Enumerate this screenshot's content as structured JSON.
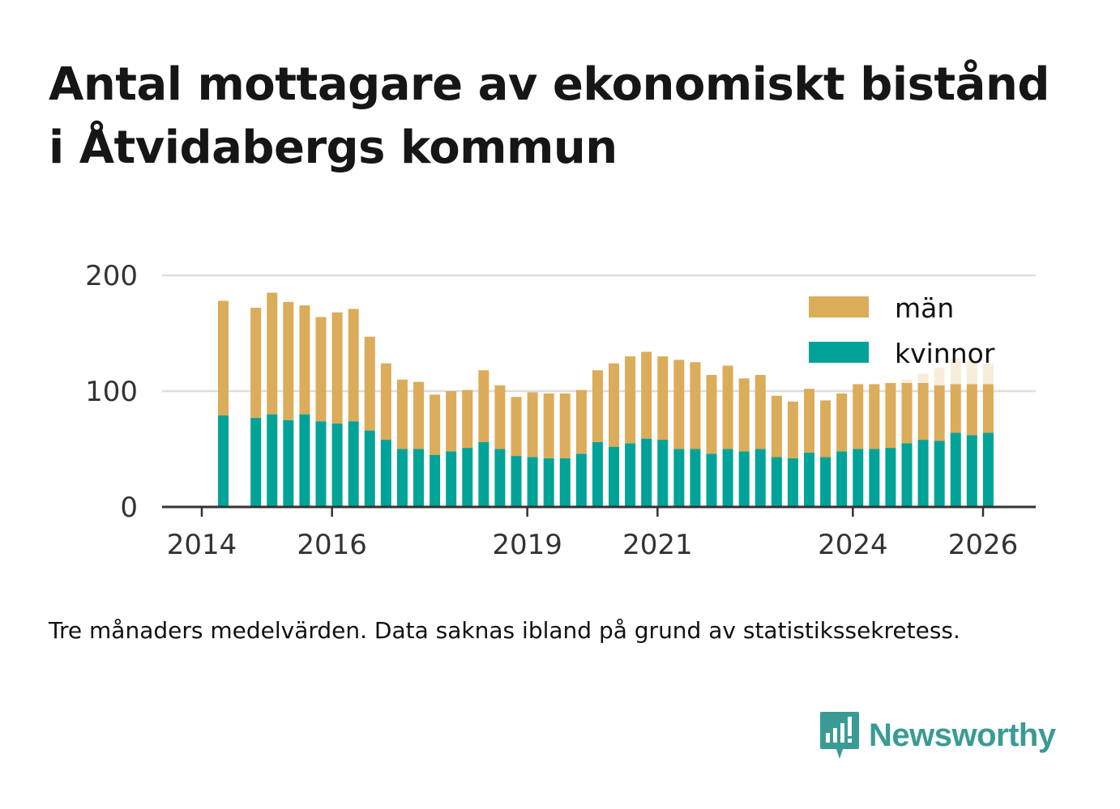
{
  "title_line1": "Antal mottagare av ekonomiskt bistånd",
  "title_line2": "i Åtvidabergs kommun",
  "footnote": "Tre månaders medelvärden. Data saknas ibland på grund av statistikssekretess.",
  "brand": "Newsworthy",
  "colors": {
    "man": "#dbac5a",
    "kvinnor": "#00a398",
    "axis": "#333333",
    "grid": "#dddddd",
    "brand": "#3a9b95"
  },
  "chart_data": {
    "type": "bar",
    "stacked": true,
    "title": "Antal mottagare av ekonomiskt bistånd i Åtvidabergs kommun",
    "xlabel": "",
    "ylabel": "",
    "ylim": [
      0,
      200
    ],
    "yticks": [
      0,
      100,
      200
    ],
    "xlim": [
      2014.0,
      2026.5
    ],
    "xticks": [
      2014,
      2016,
      2019,
      2021,
      2024,
      2026
    ],
    "legend": {
      "position": "top-right",
      "entries": [
        "män",
        "kvinnor"
      ]
    },
    "x": [
      2014.33,
      2014.83,
      2015.08,
      2015.33,
      2015.58,
      2015.83,
      2016.08,
      2016.33,
      2016.58,
      2016.83,
      2017.08,
      2017.33,
      2017.58,
      2017.83,
      2018.08,
      2018.33,
      2018.58,
      2018.83,
      2019.08,
      2019.33,
      2019.58,
      2019.83,
      2020.08,
      2020.33,
      2020.58,
      2020.83,
      2021.08,
      2021.33,
      2021.58,
      2021.83,
      2022.08,
      2022.33,
      2022.58,
      2022.83,
      2023.08,
      2023.33,
      2023.58,
      2023.83,
      2024.08,
      2024.33,
      2024.58,
      2024.83,
      2025.08,
      2025.33,
      2025.58,
      2025.83,
      2026.08
    ],
    "series": [
      {
        "name": "kvinnor",
        "values": [
          79,
          77,
          80,
          75,
          80,
          74,
          72,
          74,
          66,
          58,
          50,
          50,
          45,
          48,
          51,
          56,
          50,
          44,
          43,
          42,
          42,
          46,
          56,
          52,
          55,
          59,
          58,
          50,
          50,
          46,
          50,
          48,
          50,
          43,
          42,
          47,
          43,
          48,
          50,
          50,
          51,
          55,
          58,
          57,
          64,
          62,
          64
        ]
      },
      {
        "name": "män",
        "values": [
          99,
          95,
          105,
          102,
          94,
          90,
          96,
          97,
          81,
          66,
          60,
          58,
          52,
          52,
          50,
          62,
          55,
          51,
          56,
          56,
          56,
          55,
          62,
          72,
          75,
          75,
          72,
          77,
          75,
          68,
          72,
          63,
          64,
          53,
          49,
          55,
          49,
          50,
          56,
          56,
          56,
          52,
          49,
          48,
          42,
          44,
          42
        ]
      }
    ],
    "faded_total_after_2025": [
      null,
      null,
      null,
      null,
      null,
      null,
      null,
      null,
      null,
      null,
      null,
      null,
      null,
      null,
      null,
      null,
      null,
      null,
      null,
      null,
      null,
      null,
      null,
      null,
      null,
      null,
      null,
      null,
      null,
      null,
      null,
      null,
      null,
      null,
      null,
      null,
      null,
      null,
      null,
      null,
      null,
      110,
      115,
      120,
      128,
      126,
      124
    ]
  }
}
